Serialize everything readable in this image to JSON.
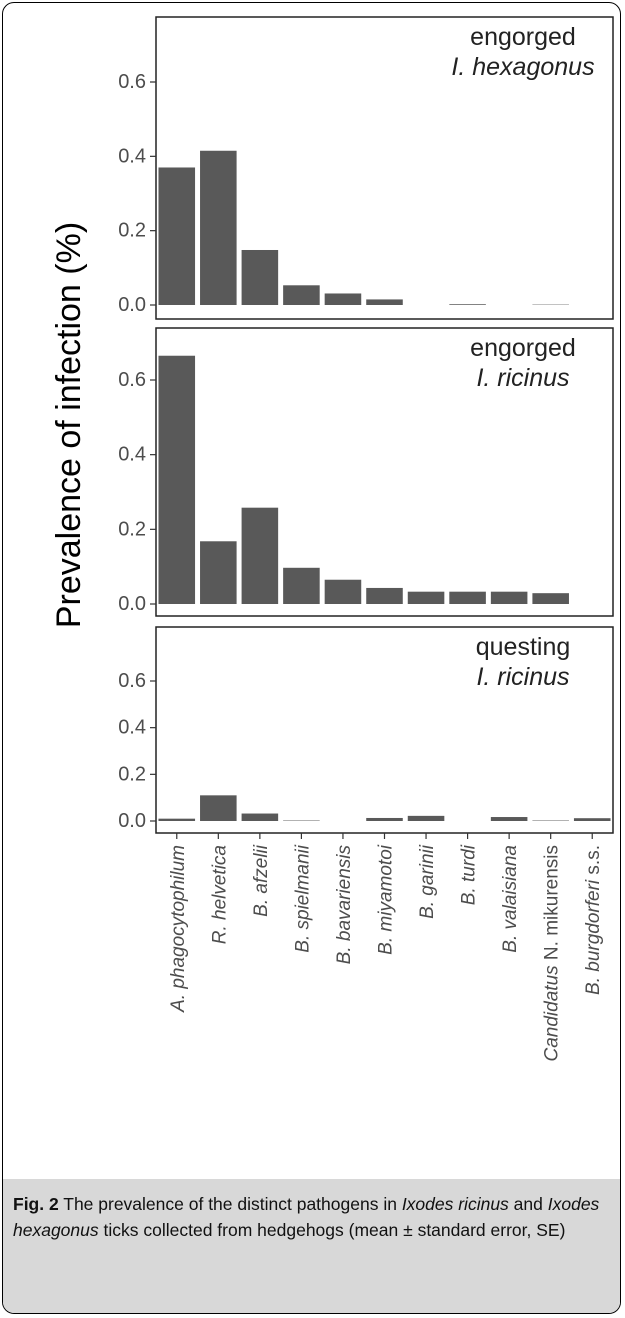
{
  "chart_data": {
    "type": "bar",
    "ylabel": "Prevalence of infection (%)",
    "ylim": [
      0,
      0.7
    ],
    "yticks": [
      "0.0",
      "0.2",
      "0.4",
      "0.6"
    ],
    "grid": false,
    "bar_color": "#595959",
    "categories": [
      "A. phagocytophilum",
      "R. helvetica",
      "B. afzelii",
      "B. spielmanii",
      "B. bavariensis",
      "B. miyamotoi",
      "B. garinii",
      "B. turdi",
      "B. valaisiana",
      "Candidatus N. mikurensis",
      "B. burgdorferi s.s."
    ],
    "panels": [
      {
        "label_line1": "engorged",
        "label_line2": "I. hexagonus",
        "values": [
          0.37,
          0.415,
          0.148,
          0.053,
          0.031,
          0.015,
          0.0,
          0.002,
          0.0,
          0.001,
          0.0
        ]
      },
      {
        "label_line1": "engorged",
        "label_line2": "I. ricinus",
        "values": [
          0.665,
          0.168,
          0.258,
          0.097,
          0.065,
          0.043,
          0.033,
          0.033,
          0.033,
          0.029,
          0.0
        ]
      },
      {
        "label_line1": "questing",
        "label_line2": "I. ricinus",
        "values": [
          0.01,
          0.11,
          0.032,
          0.002,
          0.0,
          0.013,
          0.022,
          0.0,
          0.017,
          0.002,
          0.012
        ]
      }
    ]
  },
  "caption": {
    "fig_label": "Fig. 2",
    "text_1": " The prevalence of the distinct pathogens in ",
    "species_1": "Ixodes ricinus",
    "text_2": " and ",
    "species_2": "Ixodes hexagonus",
    "text_3": " ticks collected from hedgehogs (mean ± standard error, SE)"
  }
}
